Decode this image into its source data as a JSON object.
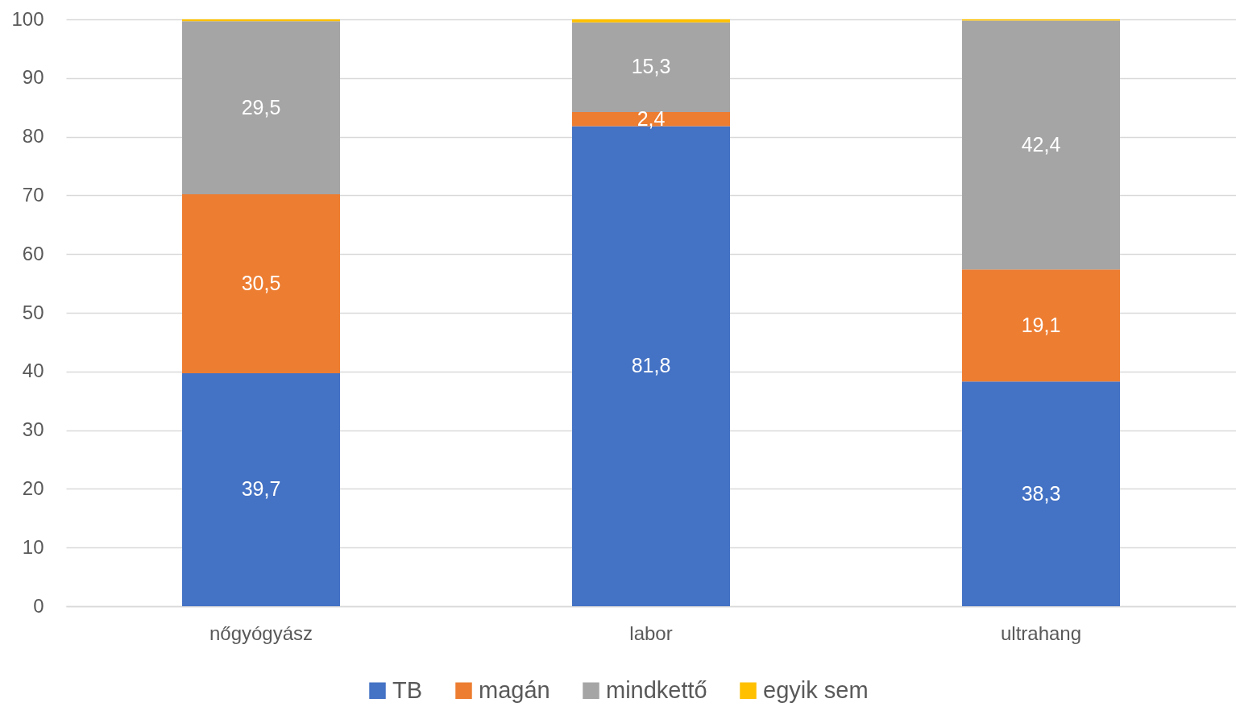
{
  "chart_data": {
    "type": "bar",
    "stacked": true,
    "categories": [
      "nőgyógyász",
      "labor",
      "ultrahang"
    ],
    "series": [
      {
        "name": "TB",
        "color": "#4472c4",
        "values": [
          39.7,
          81.8,
          38.3
        ],
        "value_labels": [
          "39,7",
          "81,8",
          "38,3"
        ]
      },
      {
        "name": "magán",
        "color": "#ed7d31",
        "values": [
          30.5,
          2.4,
          19.1
        ],
        "value_labels": [
          "30,5",
          "2,4",
          "19,1"
        ]
      },
      {
        "name": "mindkettő",
        "color": "#a5a5a5",
        "values": [
          29.5,
          15.3,
          42.4
        ],
        "value_labels": [
          "29,5",
          "15,3",
          "42,4"
        ]
      },
      {
        "name": "egyik sem",
        "color": "#ffc000",
        "values": [
          0.3,
          0.5,
          0.2
        ],
        "value_labels": [
          null,
          null,
          null
        ]
      }
    ],
    "ylim": [
      0,
      100
    ],
    "yticks": [
      0,
      10,
      20,
      30,
      40,
      50,
      60,
      70,
      80,
      90,
      100
    ],
    "grid": "y",
    "legend": "bottom"
  }
}
